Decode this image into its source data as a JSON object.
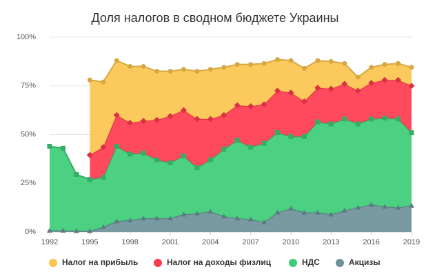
{
  "chart_data": {
    "type": "stacked_area",
    "title": "Доля налогов в сводном бюджете Украины",
    "x": [
      1992,
      1993,
      1994,
      1995,
      1996,
      1997,
      1998,
      1999,
      2000,
      2001,
      2002,
      2003,
      2004,
      2005,
      2006,
      2007,
      2008,
      2009,
      2010,
      2011,
      2012,
      2013,
      2014,
      2015,
      2016,
      2017,
      2018,
      2019
    ],
    "xlim": [
      1992,
      2019
    ],
    "xticks": [
      1992,
      1995,
      1998,
      2001,
      2004,
      2007,
      2010,
      2013,
      2016,
      2019
    ],
    "ylim": [
      0,
      100
    ],
    "yticks": [
      {
        "value": 0,
        "label": "0%"
      },
      {
        "value": 25,
        "label": "25%"
      },
      {
        "value": 50,
        "label": "50%"
      },
      {
        "value": 75,
        "label": "75%"
      },
      {
        "value": 100,
        "label": "100%"
      }
    ],
    "grid": true,
    "legend": "bottom",
    "series": [
      {
        "name": "Налог на прибыль",
        "color": "#fcc54e",
        "marker": "circle",
        "values": [
          null,
          null,
          null,
          38.5,
          33.5,
          28,
          29,
          28,
          25,
          23,
          21,
          24.5,
          25.5,
          24.5,
          21,
          21.5,
          21,
          16,
          16.5,
          17,
          14,
          14,
          10.5,
          7,
          8,
          8,
          8.5,
          9.5
        ]
      },
      {
        "name": "Налог на доходы физлиц",
        "color": "#ff3b4f",
        "marker": "diamond",
        "values": [
          null,
          null,
          null,
          12.5,
          15.5,
          16,
          16,
          16.5,
          20.5,
          24,
          23.5,
          25,
          21,
          17.5,
          18,
          21,
          20,
          21.5,
          22.5,
          18,
          17.5,
          18,
          18,
          17,
          18.5,
          19.5,
          20,
          24
        ]
      },
      {
        "name": "НДС",
        "color": "#3dcc77",
        "marker": "square",
        "values": [
          43.3,
          42.3,
          29,
          26.5,
          25.5,
          38.5,
          34,
          33.5,
          30,
          28.5,
          30,
          23.5,
          26.5,
          34.5,
          40,
          37,
          40.5,
          41,
          37,
          39,
          46.5,
          46.5,
          47,
          43,
          44,
          45.5,
          45.5,
          37.5
        ]
      },
      {
        "name": "Акцизы",
        "color": "#6f919a",
        "marker": "triangle",
        "values": [
          0.7,
          0.7,
          0.5,
          0.5,
          2.5,
          5.5,
          6,
          7,
          7,
          7,
          9,
          9.5,
          10.5,
          8,
          7,
          6.5,
          5,
          10,
          12,
          10,
          10,
          9,
          11,
          12.5,
          14,
          13,
          12.5,
          13.5
        ]
      }
    ]
  }
}
